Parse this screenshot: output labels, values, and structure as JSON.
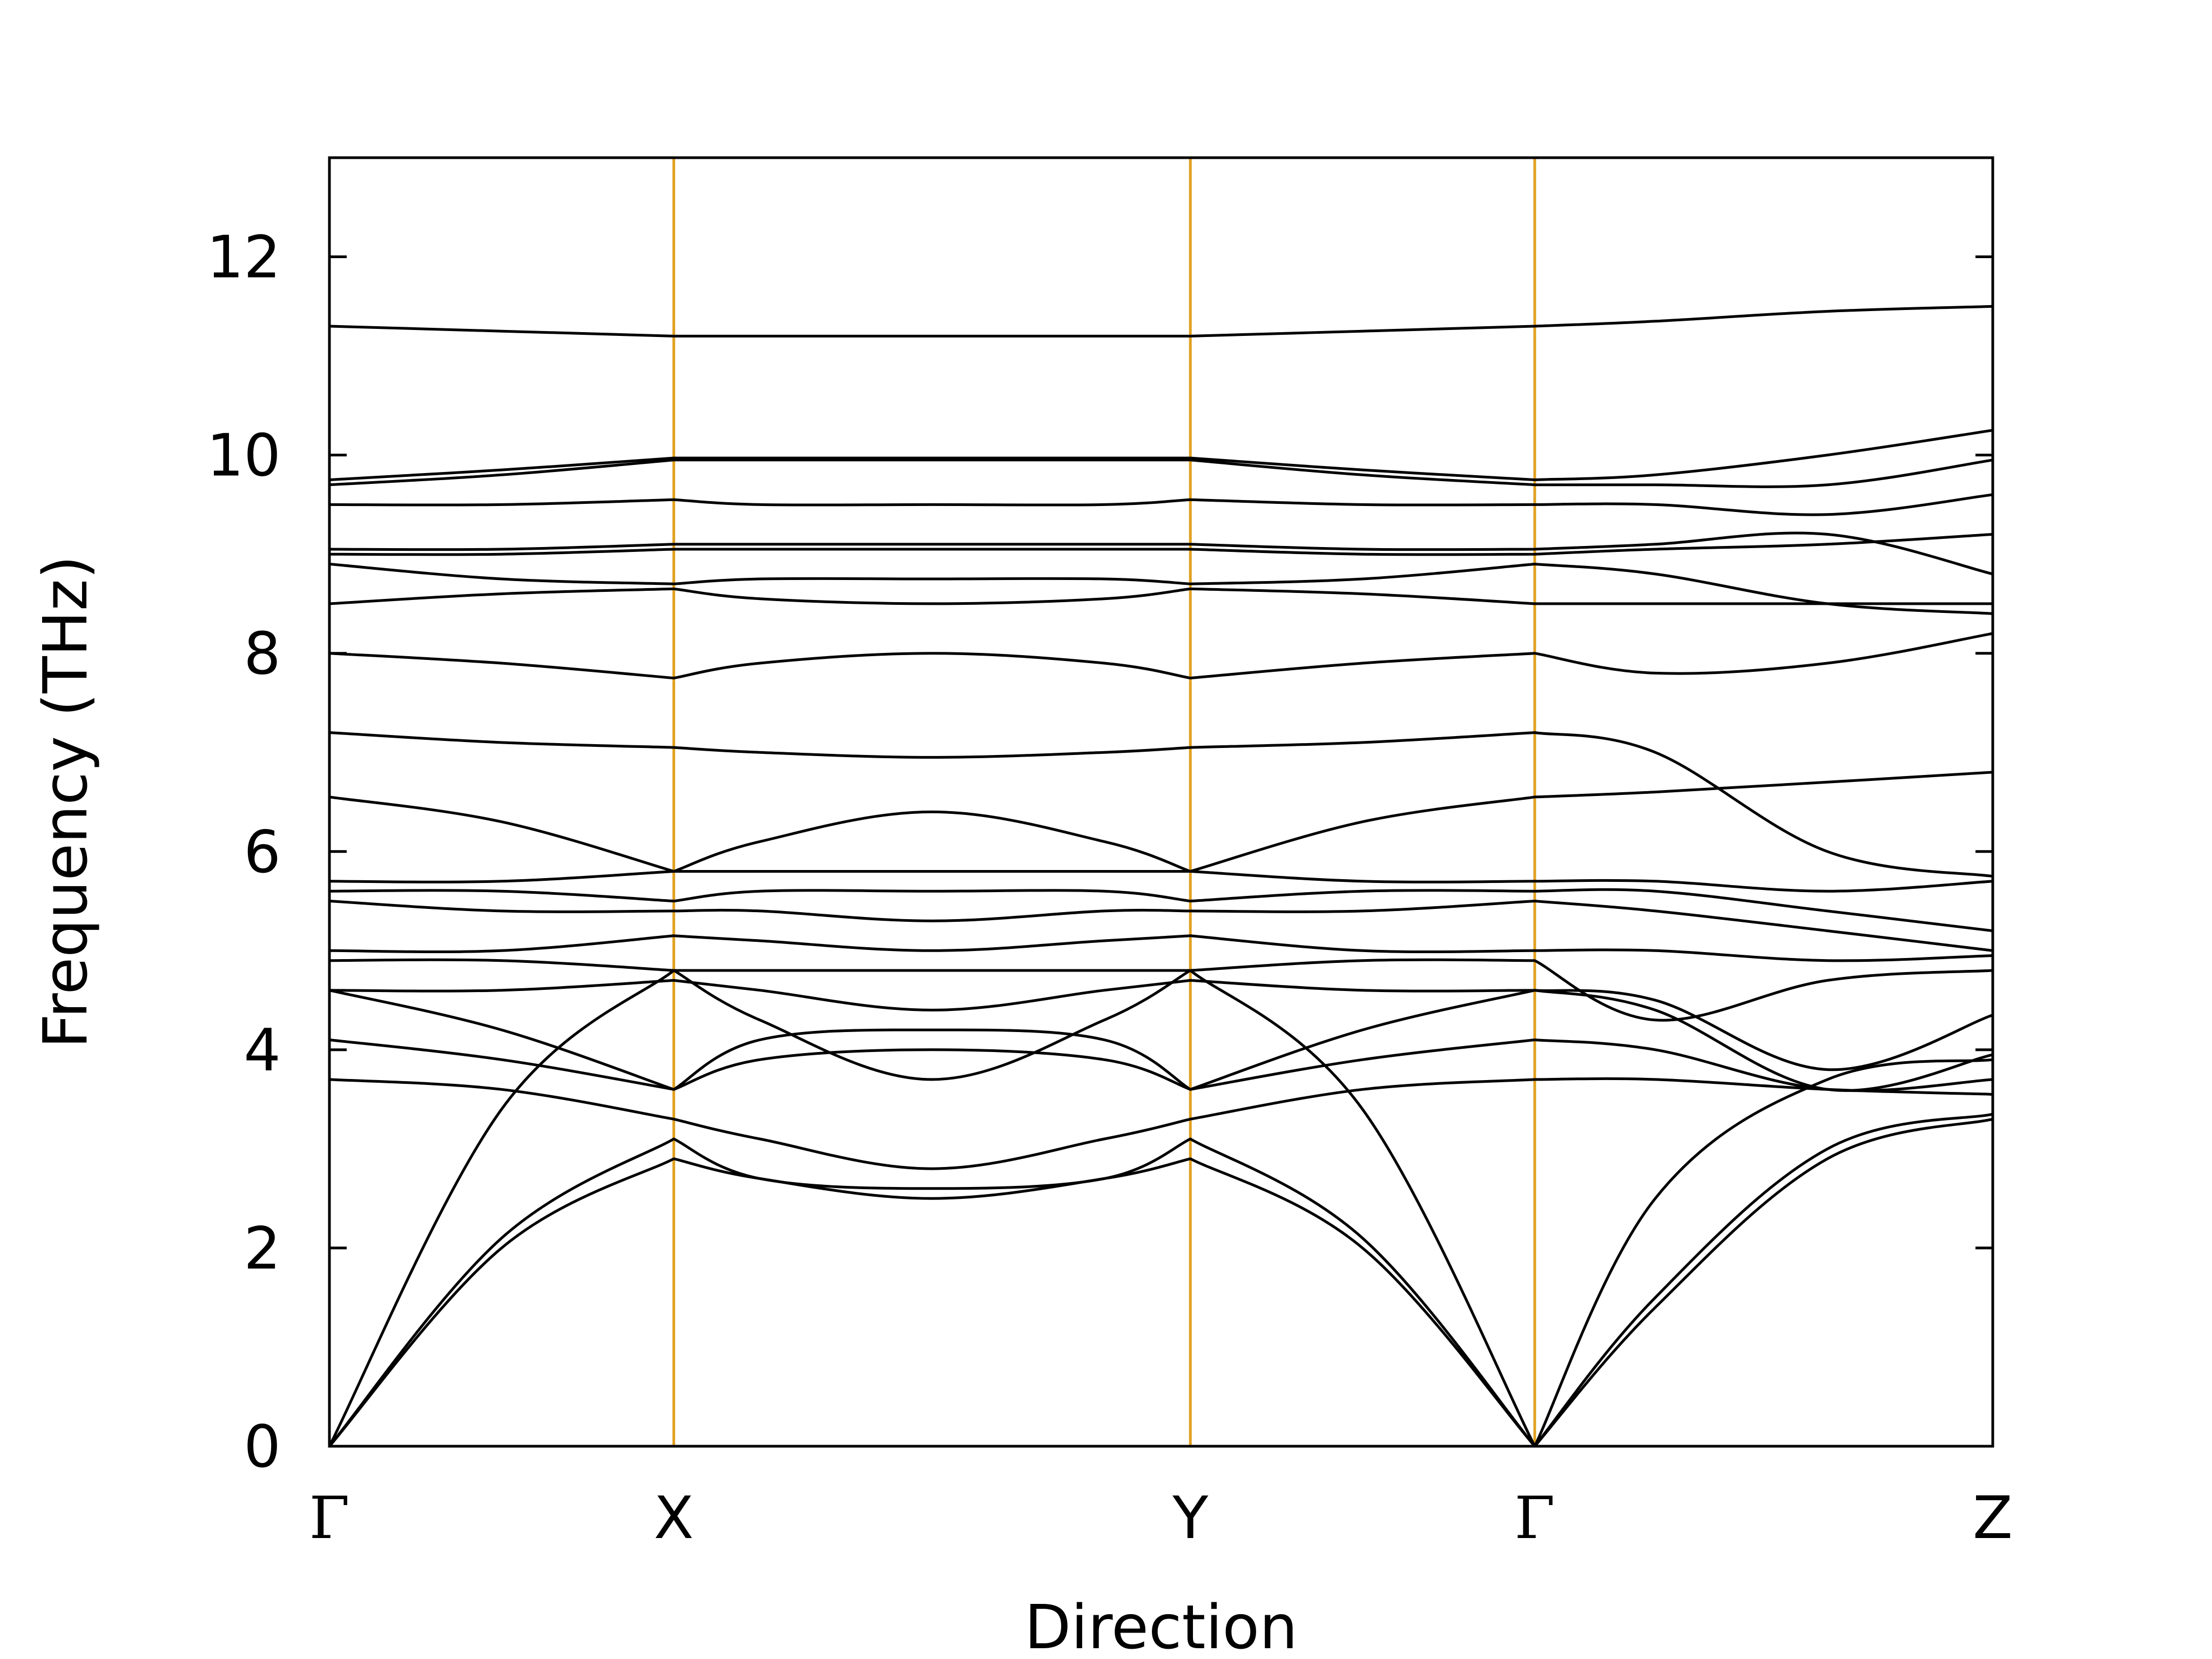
{
  "chart_data": {
    "type": "line",
    "xlabel": "Direction",
    "ylabel": "Frequency (THz)",
    "ylim": [
      0,
      13
    ],
    "xlim": [
      0,
      4.83
    ],
    "y_ticks": [
      0,
      2,
      4,
      6,
      8,
      10,
      12
    ],
    "y_tick_labels": [
      "0",
      "2",
      "4",
      "6",
      "8",
      "10",
      "12"
    ],
    "high_symmetry_points": [
      {
        "label": "Γ",
        "x": 0.0
      },
      {
        "label": "X",
        "x": 1.0
      },
      {
        "label": "Y",
        "x": 2.5
      },
      {
        "label": "Γ",
        "x": 3.5
      },
      {
        "label": "Z",
        "x": 4.83
      }
    ],
    "colors": {
      "band": "#000000",
      "divider": "#e0a020",
      "frame": "#000000"
    },
    "grid": false,
    "x": [
      0,
      0.5,
      1.0,
      1.25,
      1.75,
      2.25,
      2.5,
      3.0,
      3.5,
      3.85,
      4.35,
      4.83
    ],
    "series": [
      {
        "values": [
          0,
          2.0,
          2.9,
          2.7,
          2.5,
          2.7,
          2.9,
          2.0,
          0,
          1.4,
          2.9,
          3.3
        ]
      },
      {
        "values": [
          0,
          2.1,
          3.1,
          2.7,
          2.6,
          2.7,
          3.1,
          2.1,
          0,
          1.5,
          3.0,
          3.35
        ]
      },
      {
        "values": [
          0,
          3.4,
          4.8,
          4.3,
          3.7,
          4.3,
          4.8,
          3.4,
          0,
          2.5,
          3.7,
          3.9
        ]
      },
      {
        "values": [
          3.7,
          3.6,
          3.3,
          3.1,
          2.8,
          3.1,
          3.3,
          3.6,
          3.7,
          3.7,
          3.6,
          3.55
        ]
      },
      {
        "values": [
          4.1,
          3.9,
          3.6,
          3.9,
          4.0,
          3.9,
          3.6,
          3.9,
          4.1,
          4.0,
          3.6,
          3.7
        ]
      },
      {
        "values": [
          4.6,
          4.2,
          3.6,
          4.1,
          4.2,
          4.1,
          3.6,
          4.2,
          4.6,
          4.5,
          3.8,
          4.35
        ]
      },
      {
        "values": [
          4.6,
          4.6,
          4.7,
          4.6,
          4.4,
          4.6,
          4.7,
          4.6,
          4.6,
          4.4,
          3.6,
          3.95
        ]
      },
      {
        "values": [
          4.9,
          4.9,
          4.8,
          4.8,
          4.8,
          4.8,
          4.8,
          4.9,
          4.9,
          4.3,
          4.7,
          4.8
        ]
      },
      {
        "values": [
          5.0,
          5.0,
          5.15,
          5.1,
          5.0,
          5.1,
          5.15,
          5.0,
          5.0,
          5.0,
          4.9,
          4.95
        ]
      },
      {
        "values": [
          5.5,
          5.4,
          5.4,
          5.4,
          5.3,
          5.4,
          5.4,
          5.4,
          5.5,
          5.4,
          5.2,
          5.0
        ]
      },
      {
        "values": [
          5.6,
          5.6,
          5.5,
          5.6,
          5.6,
          5.6,
          5.5,
          5.6,
          5.6,
          5.6,
          5.4,
          5.2
        ]
      },
      {
        "values": [
          5.7,
          5.7,
          5.8,
          5.8,
          5.8,
          5.8,
          5.8,
          5.7,
          5.7,
          5.7,
          5.6,
          5.7
        ]
      },
      {
        "values": [
          6.55,
          6.3,
          5.8,
          6.1,
          6.4,
          6.1,
          5.8,
          6.3,
          6.55,
          6.6,
          6.7,
          6.8
        ]
      },
      {
        "values": [
          7.2,
          7.1,
          7.05,
          7.0,
          6.95,
          7.0,
          7.05,
          7.1,
          7.2,
          7.0,
          6.0,
          5.75
        ]
      },
      {
        "values": [
          8.0,
          7.9,
          7.75,
          7.9,
          8.0,
          7.9,
          7.75,
          7.9,
          8.0,
          7.8,
          7.9,
          8.2
        ]
      },
      {
        "values": [
          8.5,
          8.6,
          8.65,
          8.55,
          8.5,
          8.55,
          8.65,
          8.6,
          8.5,
          8.5,
          8.5,
          8.5
        ]
      },
      {
        "values": [
          8.9,
          8.75,
          8.7,
          8.75,
          8.75,
          8.75,
          8.7,
          8.75,
          8.9,
          8.8,
          8.5,
          8.4
        ]
      },
      {
        "values": [
          9.0,
          9.0,
          9.05,
          9.05,
          9.05,
          9.05,
          9.05,
          9.0,
          9.0,
          9.05,
          9.1,
          9.2
        ]
      },
      {
        "values": [
          9.05,
          9.05,
          9.1,
          9.1,
          9.1,
          9.1,
          9.1,
          9.05,
          9.05,
          9.1,
          9.2,
          8.8
        ]
      },
      {
        "values": [
          9.5,
          9.5,
          9.55,
          9.5,
          9.5,
          9.5,
          9.55,
          9.5,
          9.5,
          9.5,
          9.4,
          9.6
        ]
      },
      {
        "values": [
          9.7,
          9.8,
          9.95,
          9.95,
          9.95,
          9.95,
          9.95,
          9.8,
          9.7,
          9.7,
          9.7,
          9.95
        ]
      },
      {
        "values": [
          9.75,
          9.85,
          9.97,
          9.97,
          9.97,
          9.97,
          9.97,
          9.85,
          9.75,
          9.8,
          10.0,
          10.25
        ]
      },
      {
        "values": [
          11.3,
          11.25,
          11.2,
          11.2,
          11.2,
          11.2,
          11.2,
          11.25,
          11.3,
          11.35,
          11.45,
          11.5
        ]
      }
    ]
  }
}
